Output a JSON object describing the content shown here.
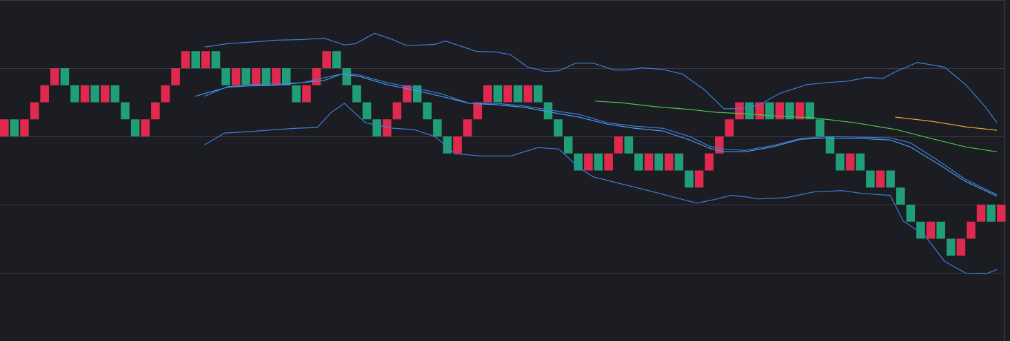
{
  "chart_data": {
    "type": "renko",
    "up_color": "#e0294f",
    "down_color": "#1f9e77",
    "xlim": [
      0,
      100.3
    ],
    "ylim": [
      -4,
      16
    ],
    "yticks": [
      0,
      4,
      8,
      12,
      16
    ],
    "grid": true,
    "open": [
      8,
      9,
      8,
      9,
      10,
      11,
      12,
      11,
      10,
      11,
      10,
      11,
      10,
      9,
      8,
      9,
      10,
      11,
      12,
      13,
      12,
      13,
      12,
      11,
      12,
      11,
      12,
      11,
      12,
      11,
      10,
      11,
      12,
      13,
      12,
      11,
      10,
      9,
      8,
      9,
      10,
      11,
      10,
      9,
      8,
      7,
      8,
      9,
      10,
      11,
      10,
      11,
      10,
      11,
      10,
      9,
      8,
      7,
      6,
      7,
      6,
      7,
      8,
      7,
      6,
      7,
      6,
      7,
      6,
      5,
      6,
      7,
      8,
      9,
      10,
      9,
      10,
      9,
      10,
      9,
      10,
      9,
      8,
      7,
      6,
      7,
      6,
      5,
      6,
      5,
      4,
      3,
      2,
      3,
      2,
      1,
      2,
      3,
      4,
      3
    ],
    "close": [
      9,
      8,
      9,
      10,
      11,
      12,
      11,
      10,
      11,
      10,
      11,
      10,
      9,
      8,
      9,
      10,
      11,
      12,
      13,
      12,
      13,
      12,
      11,
      12,
      11,
      12,
      11,
      12,
      11,
      10,
      11,
      12,
      13,
      12,
      11,
      10,
      9,
      8,
      9,
      10,
      11,
      10,
      9,
      8,
      7,
      8,
      9,
      10,
      11,
      10,
      11,
      10,
      11,
      10,
      9,
      8,
      7,
      6,
      7,
      6,
      7,
      8,
      7,
      6,
      7,
      6,
      7,
      6,
      5,
      6,
      7,
      8,
      9,
      10,
      9,
      10,
      9,
      10,
      9,
      10,
      9,
      8,
      7,
      6,
      7,
      6,
      5,
      6,
      5,
      4,
      3,
      2,
      3,
      2,
      1,
      2,
      3,
      4,
      3,
      4
    ],
    "lines": [
      {
        "color": "#3d7fd9",
        "x": [
          20.3,
          22.6,
          24.7,
          27.4,
          30.1,
          32.2,
          34.2,
          35.3,
          37.2,
          39.0,
          40.4,
          43.2,
          44.2,
          47.3,
          49.3,
          50.7,
          52.4,
          54.1,
          55.5,
          57.2,
          58.9,
          61.0,
          62.3,
          63.7,
          65.8,
          67.8,
          69.9,
          71.9,
          73.3,
          75.3,
          77.4,
          80.1,
          82.2,
          84.2,
          86.0,
          87.7,
          89.0,
          91.1,
          93.8,
          95.9,
          97.9,
          99.0
        ],
        "values": [
          13.24,
          13.44,
          13.52,
          13.64,
          13.68,
          13.76,
          13.36,
          13.44,
          14.05,
          13.68,
          13.32,
          13.4,
          13.6,
          12.99,
          12.95,
          12.79,
          12.06,
          11.81,
          11.85,
          12.3,
          12.3,
          11.89,
          11.89,
          12.02,
          11.93,
          11.65,
          10.76,
          9.62,
          9.62,
          9.82,
          10.51,
          11.04,
          11.16,
          11.24,
          11.45,
          11.41,
          11.81,
          12.34,
          12.06,
          11.04,
          9.7,
          8.8
        ]
      },
      {
        "color": "#3d7fd9",
        "x": [
          20.3,
          22.3,
          24.7,
          27.4,
          29.5,
          31.5,
          32.9,
          34.2,
          36.3,
          39.0,
          41.1,
          43.2,
          45.2,
          47.9,
          50.7,
          53.4,
          55.5,
          57.5,
          58.9,
          61.6,
          64.4,
          67.1,
          69.2,
          71.2,
          72.6,
          74.0,
          75.3,
          78.1,
          80.8,
          83.6,
          85.6,
          88.4,
          89.7,
          91.8,
          93.8,
          95.9,
          97.9,
          99.0
        ],
        "values": [
          7.5,
          8.2,
          8.28,
          8.4,
          8.48,
          8.52,
          9.41,
          9.94,
          8.8,
          8.48,
          8.4,
          7.99,
          6.98,
          6.85,
          6.85,
          7.34,
          7.26,
          6.16,
          5.63,
          5.23,
          4.82,
          4.41,
          4.09,
          4.33,
          4.54,
          4.46,
          4.33,
          4.41,
          4.74,
          4.82,
          4.66,
          4.54,
          3.03,
          2.22,
          0.67,
          -0.02,
          -0.06,
          0.19
        ]
      },
      {
        "color": "#4a9af0",
        "x": [
          19.4,
          20.5,
          22.6,
          24.7,
          27.4,
          30.1,
          32.2,
          33.9,
          35.6,
          38.4,
          41.1,
          43.8,
          46.6,
          49.3,
          52.1,
          54.8,
          57.5,
          60.3,
          63.0,
          65.8,
          68.5,
          70.5,
          71.9,
          74.0,
          76.7,
          79.5,
          82.2,
          85.6,
          88.4,
          90.4,
          93.2,
          95.9,
          99.0
        ],
        "values": [
          10.35,
          10.55,
          10.88,
          10.96,
          11.0,
          11.16,
          11.28,
          11.65,
          11.53,
          11.04,
          10.72,
          10.35,
          9.94,
          9.86,
          9.7,
          9.41,
          9.13,
          8.72,
          8.48,
          8.32,
          7.79,
          7.3,
          7.1,
          7.1,
          7.38,
          7.83,
          7.91,
          7.87,
          7.79,
          7.38,
          6.37,
          5.35,
          4.5
        ]
      },
      {
        "color": "#3d7fd9",
        "x": [
          20.3,
          22.6,
          24.7,
          27.4,
          30.1,
          32.9,
          34.2,
          35.6,
          38.4,
          41.1,
          43.8,
          46.6,
          49.3,
          52.1,
          54.8,
          57.5,
          60.3,
          63.0,
          65.8,
          68.5,
          70.5,
          71.9,
          74.0,
          76.7,
          79.5,
          82.2,
          85.6,
          88.4,
          90.4,
          93.2,
          95.9,
          99.0
        ],
        "values": [
          10.35,
          10.92,
          11.04,
          11.08,
          11.16,
          11.53,
          11.69,
          11.61,
          11.16,
          10.84,
          10.51,
          9.94,
          9.94,
          9.78,
          9.53,
          9.29,
          8.8,
          8.6,
          8.48,
          7.99,
          7.42,
          7.26,
          7.18,
          7.46,
          7.87,
          7.99,
          7.95,
          7.91,
          7.63,
          6.57,
          5.47,
          4.58
        ]
      },
      {
        "color": "#4cc44c",
        "x": [
          59.1,
          61.6,
          65.1,
          68.5,
          71.2,
          74.0,
          76.7,
          80.8,
          84.9,
          89.0,
          92.5,
          95.9,
          99.0
        ],
        "values": [
          10.07,
          9.98,
          9.74,
          9.58,
          9.41,
          9.33,
          9.21,
          9.09,
          8.8,
          8.4,
          7.87,
          7.38,
          7.1
        ]
      },
      {
        "color": "#e8a23a",
        "x": [
          88.9,
          92.5,
          95.9,
          99.0
        ],
        "values": [
          9.13,
          8.89,
          8.56,
          8.36
        ]
      }
    ]
  }
}
